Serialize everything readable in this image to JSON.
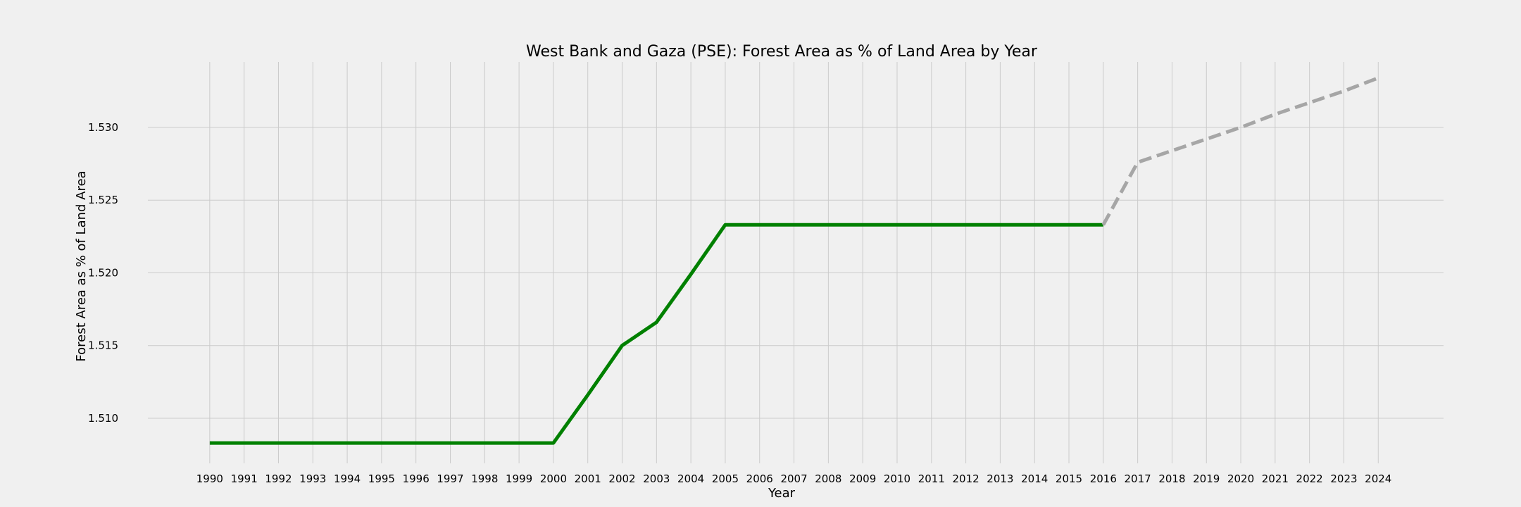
{
  "chart_data": {
    "type": "line",
    "title": "West Bank and Gaza (PSE): Forest Area as % of Land Area by Year",
    "xlabel": "Year",
    "ylabel": "Forest Area as % of Land Area",
    "x": [
      1990,
      1991,
      1992,
      1993,
      1994,
      1995,
      1996,
      1997,
      1998,
      1999,
      2000,
      2001,
      2002,
      2003,
      2004,
      2005,
      2006,
      2007,
      2008,
      2009,
      2010,
      2011,
      2012,
      2013,
      2014,
      2015,
      2016,
      2017,
      2018,
      2019,
      2020,
      2021,
      2022,
      2023,
      2024
    ],
    "xlim": [
      1988.2,
      2025.9
    ],
    "ylim": [
      1.5069,
      1.5345
    ],
    "yticks": [
      1.51,
      1.515,
      1.52,
      1.525,
      1.53
    ],
    "ytick_labels": [
      "1.510",
      "1.515",
      "1.520",
      "1.525",
      "1.530"
    ],
    "grid": true,
    "series": [
      {
        "style": "solid",
        "color": "#008000",
        "x": [
          1990,
          1991,
          1992,
          1993,
          1994,
          1995,
          1996,
          1997,
          1998,
          1999,
          2000,
          2001,
          2002,
          2003,
          2004,
          2005,
          2006,
          2007,
          2008,
          2009,
          2010,
          2011,
          2012,
          2013,
          2014,
          2015,
          2016
        ],
        "values": [
          1.5083,
          1.5083,
          1.5083,
          1.5083,
          1.5083,
          1.5083,
          1.5083,
          1.5083,
          1.5083,
          1.5083,
          1.5083,
          1.5116,
          1.515,
          1.5166,
          1.5199,
          1.5233,
          1.5233,
          1.5233,
          1.5233,
          1.5233,
          1.5233,
          1.5233,
          1.5233,
          1.5233,
          1.5233,
          1.5233,
          1.5233
        ]
      },
      {
        "style": "dashed",
        "color": "#a6a6a6",
        "x": [
          2016,
          2017,
          2018,
          2019,
          2020,
          2021,
          2022,
          2023,
          2024
        ],
        "values": [
          1.5233,
          1.5276,
          1.5284,
          1.5292,
          1.53,
          1.5309,
          1.5317,
          1.5325,
          1.5334
        ]
      }
    ]
  }
}
